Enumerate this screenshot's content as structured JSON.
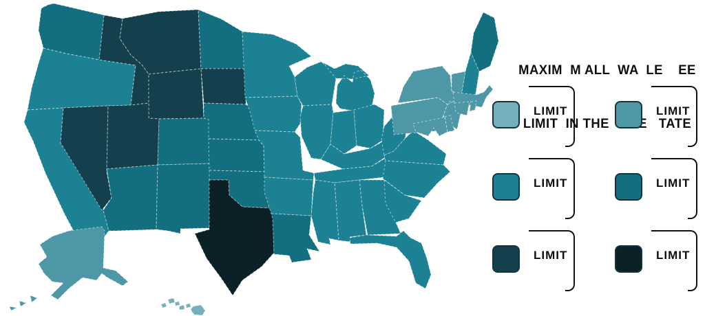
{
  "title": {
    "line1": "MAXIM  M ALL  WA  LE    EE",
    "line2": "LIMIT  IN THE  NITE   TATE"
  },
  "legend": {
    "items": [
      {
        "label": "LIMIT",
        "bucket": "c1"
      },
      {
        "label": "LIMIT",
        "bucket": "c2"
      },
      {
        "label": "LIMIT",
        "bucket": "c3"
      },
      {
        "label": "LIMIT",
        "bucket": "c4"
      },
      {
        "label": "LIMIT",
        "bucket": "c5"
      },
      {
        "label": "LIMIT",
        "bucket": "c6"
      }
    ]
  },
  "palette": {
    "c1": "#74afbc",
    "c2": "#4e97a6",
    "c3": "#1b8193",
    "c4": "#136e80",
    "c5": "#14404d",
    "c6": "#0c2127"
  },
  "map": {
    "background": "#ffffff",
    "border_dash_color": "rgba(255,255,255,0.55)",
    "swatch_border_color": "#14333c",
    "states": [
      {
        "id": "WA",
        "bucket": "c4"
      },
      {
        "id": "OR",
        "bucket": "c3"
      },
      {
        "id": "CA",
        "bucket": "c3"
      },
      {
        "id": "NV",
        "bucket": "c5"
      },
      {
        "id": "ID",
        "bucket": "c5"
      },
      {
        "id": "MT",
        "bucket": "c5"
      },
      {
        "id": "WY",
        "bucket": "c5"
      },
      {
        "id": "UT",
        "bucket": "c5"
      },
      {
        "id": "CO",
        "bucket": "c4"
      },
      {
        "id": "AZ",
        "bucket": "c4"
      },
      {
        "id": "NM",
        "bucket": "c4"
      },
      {
        "id": "ND",
        "bucket": "c4"
      },
      {
        "id": "SD",
        "bucket": "c5"
      },
      {
        "id": "NE",
        "bucket": "c4"
      },
      {
        "id": "KS",
        "bucket": "c4"
      },
      {
        "id": "OK",
        "bucket": "c4"
      },
      {
        "id": "TX",
        "bucket": "c6"
      },
      {
        "id": "MN",
        "bucket": "c3"
      },
      {
        "id": "IA",
        "bucket": "c3"
      },
      {
        "id": "MO",
        "bucket": "c3"
      },
      {
        "id": "AR",
        "bucket": "c3"
      },
      {
        "id": "LA",
        "bucket": "c4"
      },
      {
        "id": "WI",
        "bucket": "c3"
      },
      {
        "id": "IL",
        "bucket": "c3"
      },
      {
        "id": "MI",
        "bucket": "c3"
      },
      {
        "id": "IN",
        "bucket": "c3"
      },
      {
        "id": "OH",
        "bucket": "c3"
      },
      {
        "id": "KY",
        "bucket": "c3"
      },
      {
        "id": "TN",
        "bucket": "c3"
      },
      {
        "id": "WV",
        "bucket": "c3"
      },
      {
        "id": "VA",
        "bucket": "c3"
      },
      {
        "id": "NC",
        "bucket": "c3"
      },
      {
        "id": "SC",
        "bucket": "c3"
      },
      {
        "id": "GA",
        "bucket": "c3"
      },
      {
        "id": "AL",
        "bucket": "c3"
      },
      {
        "id": "MS",
        "bucket": "c3"
      },
      {
        "id": "FL",
        "bucket": "c3"
      },
      {
        "id": "PA",
        "bucket": "c2"
      },
      {
        "id": "NY",
        "bucket": "c2"
      },
      {
        "id": "NJ",
        "bucket": "c2"
      },
      {
        "id": "VT",
        "bucket": "c2"
      },
      {
        "id": "NH",
        "bucket": "c3"
      },
      {
        "id": "ME",
        "bucket": "c4"
      },
      {
        "id": "MA",
        "bucket": "c2"
      },
      {
        "id": "CT",
        "bucket": "c2"
      },
      {
        "id": "RI",
        "bucket": "c2"
      },
      {
        "id": "DE",
        "bucket": "c2"
      },
      {
        "id": "MD",
        "bucket": "c2"
      },
      {
        "id": "AK",
        "bucket": "c2"
      },
      {
        "id": "HI",
        "bucket": "c1"
      }
    ]
  }
}
